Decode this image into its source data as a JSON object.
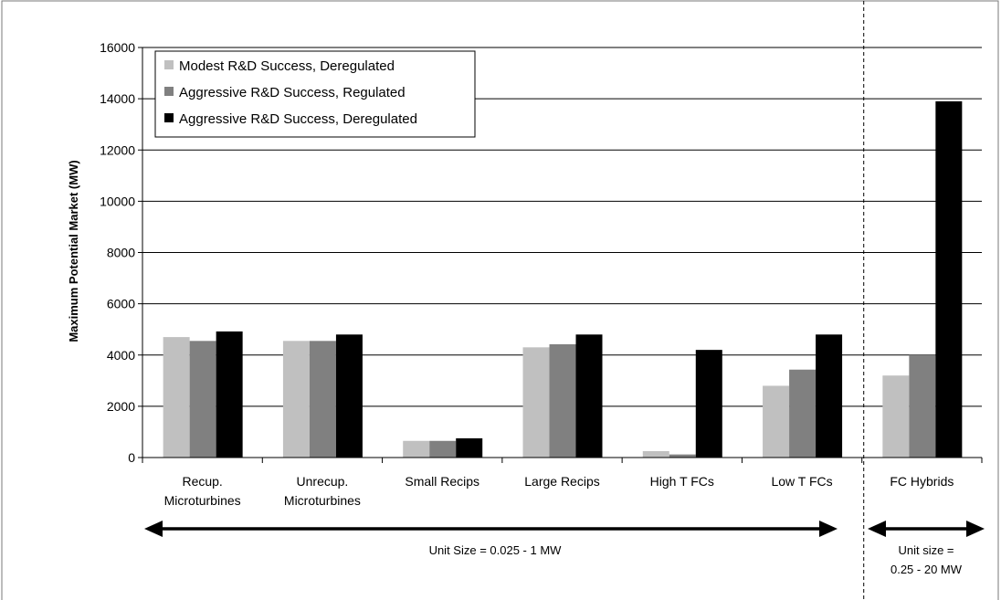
{
  "chart_data": {
    "type": "bar",
    "ylabel": "Maximum Potential Market (MW)",
    "xlabel": "",
    "ylim": [
      0,
      16000
    ],
    "yticks": [
      0,
      2000,
      4000,
      6000,
      8000,
      10000,
      12000,
      14000,
      16000
    ],
    "grid": true,
    "legend_position": "top-left",
    "categories": [
      [
        "Recup.",
        "Microturbines"
      ],
      [
        "Unrecup.",
        "Microturbines"
      ],
      [
        "Small Recips"
      ],
      [
        "Large Recips"
      ],
      [
        "High T FCs"
      ],
      [
        "Low T FCs"
      ],
      [
        "FC Hybrids"
      ]
    ],
    "series": [
      {
        "name": "Modest R&D Success, Deregulated",
        "color": "#c0c0c0",
        "values": [
          4700,
          4550,
          650,
          4300,
          250,
          2800,
          3200
        ]
      },
      {
        "name": "Aggressive R&D Success, Regulated",
        "color": "#808080",
        "values": [
          4550,
          4550,
          650,
          4420,
          120,
          3430,
          4000
        ]
      },
      {
        "name": "Aggressive R&D Success, Deregulated",
        "color": "#000000",
        "values": [
          4920,
          4800,
          750,
          4800,
          4200,
          4800,
          13900
        ]
      }
    ],
    "annotations": [
      {
        "text": [
          "Unit Size = 0.025 - 1 MW"
        ]
      },
      {
        "text": [
          "Unit size =",
          "0.25 - 20 MW"
        ]
      }
    ]
  }
}
